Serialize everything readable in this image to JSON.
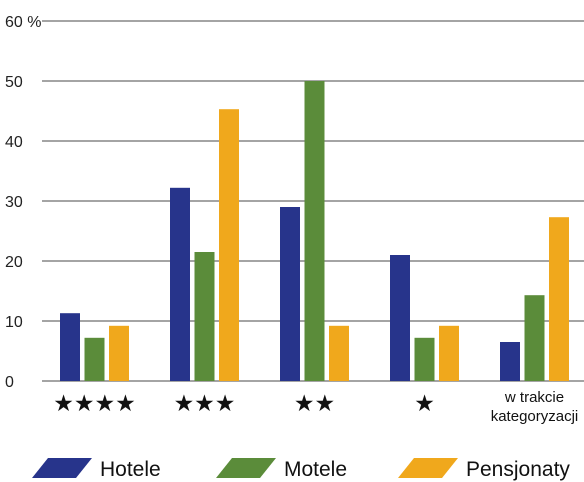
{
  "chart_data": {
    "type": "bar",
    "categories": [
      "★★★★",
      "★★★",
      "★★",
      "★",
      "w trakcie kategoryzacji"
    ],
    "series": [
      {
        "name": "Hotele",
        "color": "#27348b",
        "values": [
          11.3,
          32.2,
          29.0,
          21.0,
          6.5
        ]
      },
      {
        "name": "Motele",
        "color": "#5b8c3a",
        "values": [
          7.2,
          21.5,
          50.0,
          7.2,
          14.3
        ]
      },
      {
        "name": "Pensjonaty",
        "color": "#f0a81c",
        "values": [
          9.2,
          45.3,
          9.2,
          9.2,
          27.3
        ]
      }
    ],
    "y_ticks": [
      "0",
      "10",
      "20",
      "30",
      "40",
      "50",
      "60 %"
    ],
    "ylim": [
      0,
      60
    ],
    "grid": true,
    "legend_position": "bottom"
  }
}
